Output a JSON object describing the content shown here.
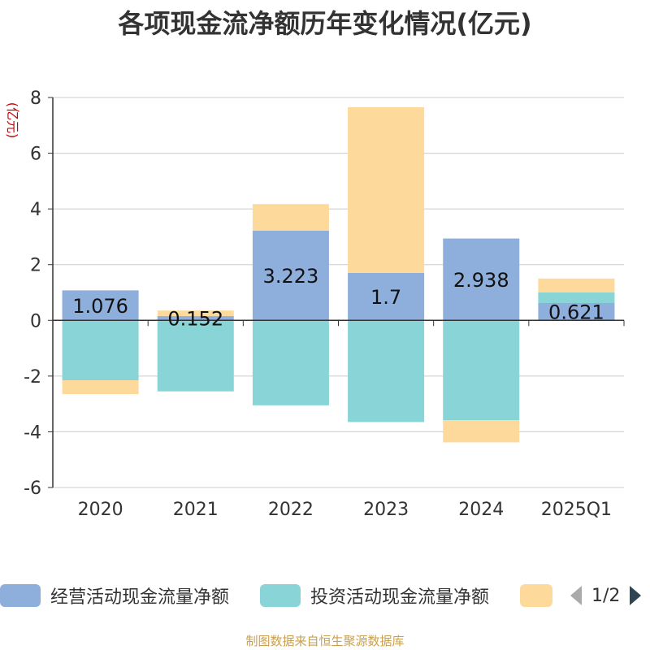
{
  "chart_data": {
    "type": "bar",
    "stacked": true,
    "title": "各项现金流净额历年变化情况(亿元)",
    "ylabel": "(亿元)",
    "xlabel": "",
    "ylim": [
      -6,
      8
    ],
    "yticks": [
      -6,
      -4,
      -2,
      0,
      2,
      4,
      6,
      8
    ],
    "grid": true,
    "categories": [
      "2020",
      "2021",
      "2022",
      "2023",
      "2024",
      "2025Q1"
    ],
    "series": [
      {
        "name": "经营活动现金流量净额",
        "color": "#8eaedb",
        "values": [
          1.076,
          0.152,
          3.223,
          1.7,
          2.938,
          0.621
        ],
        "labels": [
          "1.076",
          "0.152",
          "3.223",
          "1.7",
          "2.938",
          "0.621"
        ]
      },
      {
        "name": "投资活动现金流量净额",
        "color": "#88d4d6",
        "values": [
          -2.15,
          -2.55,
          -3.05,
          -3.65,
          -3.58,
          0.38
        ]
      },
      {
        "name": "",
        "color": "#fdd99b",
        "values": [
          -0.5,
          0.2,
          0.95,
          5.95,
          -0.8,
          0.5
        ]
      }
    ]
  },
  "legend": {
    "page_text": "1/2",
    "prev_color": "#aaaaaa",
    "next_color": "#2f4554"
  },
  "source_note": "制图数据来自恒生聚源数据库"
}
